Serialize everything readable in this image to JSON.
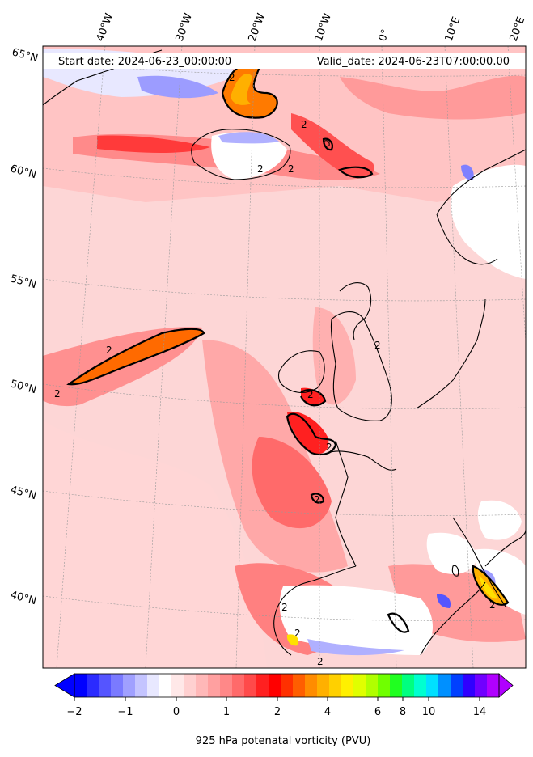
{
  "header": {
    "start_date": "Start date: 2024-06-23_00:00:00",
    "valid_date": "Valid_date: 2024-06-23T07:00:00.00"
  },
  "map": {
    "projection": "conic (polar-stereographic style)",
    "longitude_labels": [
      "40°W",
      "30°W",
      "20°W",
      "10°W",
      "0°",
      "10°E",
      "20°E"
    ],
    "latitude_labels": [
      "65°N",
      "60°N",
      "55°N",
      "50°N",
      "45°N",
      "40°N"
    ],
    "contour_level_label": "2",
    "contour_labels_count": 14,
    "field": "925 hPa potential vorticity",
    "colors": {
      "background_low": "#fde0e0",
      "background_mid": "#ffb3b3",
      "high": "#ff3030",
      "peak": "#ff6a00",
      "core": "#ffd000",
      "negative": "#7070ff",
      "land_missing": "#ffffff",
      "coast": "#000000"
    }
  },
  "colorbar": {
    "label": "925 hPa potenatal vorticity (PVU)",
    "tick_labels": [
      "−2",
      "−1",
      "0",
      "1",
      "2",
      "4",
      "6",
      "8",
      "10",
      "14"
    ],
    "colors": [
      "#0000ff",
      "#2b2bff",
      "#5555ff",
      "#7a7aff",
      "#a0a0ff",
      "#c4c4ff",
      "#e8e8ff",
      "#ffffff",
      "#ffe8e8",
      "#ffd0d0",
      "#ffb8b8",
      "#ffa0a0",
      "#ff8888",
      "#ff6a6a",
      "#ff4a4a",
      "#ff2020",
      "#ff0000",
      "#ff3000",
      "#ff5e00",
      "#ff8c00",
      "#ffb000",
      "#ffd000",
      "#fff000",
      "#e0ff00",
      "#b0ff00",
      "#70ff00",
      "#20ff20",
      "#00ff80",
      "#00ffd0",
      "#00e0ff",
      "#0090ff",
      "#0040ff",
      "#3000ff",
      "#7000ff",
      "#b000ff"
    ]
  }
}
